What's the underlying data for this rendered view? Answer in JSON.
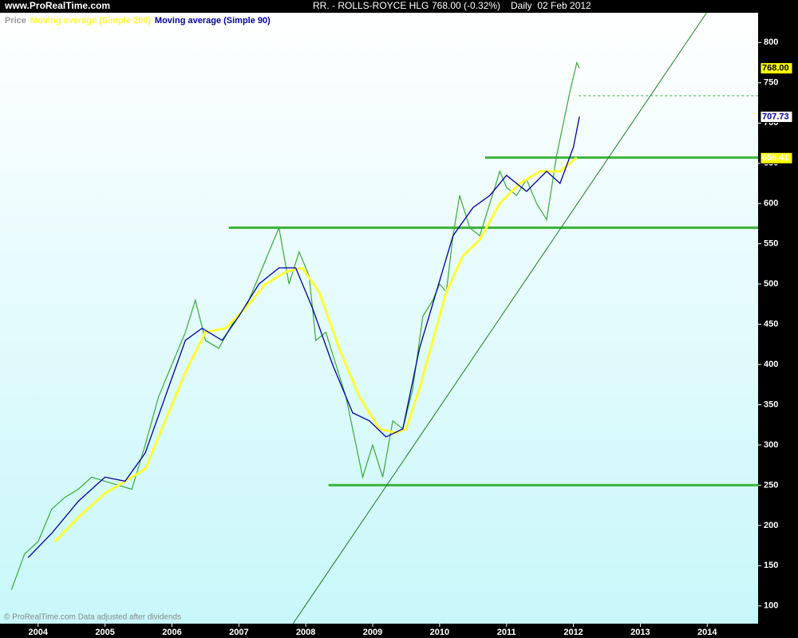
{
  "chart_data": {
    "type": "line",
    "site": "www.ProRealTime.com",
    "title": "RR. - ROLLS-ROYCE HLG",
    "last": "768.00 (-0.32%)",
    "period": "Daily  02 Feb 2012",
    "footer": "© ProRealTime.com  Data adjusted after dividends",
    "xlim": [
      2003.43,
      2014.76
    ],
    "xticks": [
      2004,
      2005,
      2006,
      2007,
      2008,
      2009,
      2010,
      2011,
      2012,
      2013,
      2014
    ],
    "ylim": [
      78,
      837
    ],
    "yticks": [
      100,
      150,
      200,
      250,
      300,
      350,
      400,
      450,
      500,
      550,
      600,
      650,
      700,
      750,
      800
    ],
    "series": [
      {
        "name": "Price",
        "color": "#3aa83a",
        "legend_color": "#999999",
        "x": [
          2003.6,
          2003.8,
          2004.0,
          2004.2,
          2004.4,
          2004.6,
          2004.8,
          2005.0,
          2005.2,
          2005.4,
          2005.6,
          2005.8,
          2006.0,
          2006.2,
          2006.35,
          2006.5,
          2006.7,
          2006.9,
          2007.1,
          2007.3,
          2007.5,
          2007.6,
          2007.75,
          2007.9,
          2008.05,
          2008.15,
          2008.3,
          2008.45,
          2008.6,
          2008.75,
          2008.85,
          2009.0,
          2009.15,
          2009.3,
          2009.45,
          2009.6,
          2009.75,
          2009.9,
          2010.0,
          2010.1,
          2010.2,
          2010.3,
          2010.45,
          2010.6,
          2010.75,
          2010.9,
          2011.0,
          2011.15,
          2011.3,
          2011.45,
          2011.6,
          2011.75,
          2011.85,
          2011.95,
          2012.05,
          2012.09
        ],
        "values": [
          120,
          165,
          180,
          220,
          235,
          245,
          260,
          255,
          250,
          245,
          300,
          360,
          400,
          440,
          480,
          430,
          420,
          450,
          470,
          510,
          550,
          570,
          500,
          540,
          510,
          430,
          440,
          400,
          360,
          300,
          260,
          300,
          260,
          330,
          320,
          370,
          460,
          480,
          500,
          490,
          560,
          610,
          570,
          560,
          600,
          640,
          620,
          610,
          630,
          600,
          580,
          660,
          700,
          740,
          775,
          768
        ]
      },
      {
        "name": "Moving average (Simple 200)",
        "color": "#ffff33",
        "legend_color": "#ffff33",
        "x": [
          2004.25,
          2004.6,
          2005.0,
          2005.3,
          2005.6,
          2005.9,
          2006.2,
          2006.5,
          2006.8,
          2007.1,
          2007.4,
          2007.7,
          2007.95,
          2008.2,
          2008.5,
          2008.8,
          2009.1,
          2009.35,
          2009.5,
          2009.7,
          2009.9,
          2010.1,
          2010.35,
          2010.6,
          2010.9,
          2011.2,
          2011.5,
          2011.8,
          2012.05
        ],
        "values": [
          180,
          210,
          240,
          255,
          270,
          330,
          390,
          440,
          445,
          470,
          500,
          515,
          520,
          490,
          420,
          360,
          320,
          315,
          320,
          370,
          430,
          490,
          535,
          555,
          600,
          625,
          640,
          640,
          657
        ]
      },
      {
        "name": "Moving average (Simple 90)",
        "color": "#0000a0",
        "legend_color": "#0000a0",
        "x": [
          2003.85,
          2004.2,
          2004.6,
          2005.0,
          2005.3,
          2005.6,
          2005.9,
          2006.2,
          2006.45,
          2006.75,
          2007.0,
          2007.3,
          2007.6,
          2007.85,
          2008.1,
          2008.4,
          2008.7,
          2008.95,
          2009.2,
          2009.45,
          2009.7,
          2009.95,
          2010.2,
          2010.5,
          2010.75,
          2011.0,
          2011.3,
          2011.6,
          2011.8,
          2012.0,
          2012.09
        ],
        "values": [
          160,
          190,
          230,
          260,
          255,
          290,
          360,
          430,
          445,
          430,
          460,
          500,
          520,
          520,
          470,
          400,
          340,
          330,
          310,
          320,
          420,
          490,
          560,
          595,
          610,
          635,
          615,
          640,
          625,
          670,
          708
        ]
      }
    ],
    "levels": [
      {
        "value": 250,
        "from": 2008.34,
        "color": "#3cb43c"
      },
      {
        "value": 570,
        "from": 2006.85,
        "color": "#3cb43c"
      },
      {
        "value": 657,
        "from": 2010.68,
        "color": "#3cb43c"
      }
    ],
    "dashed_level": {
      "value": 734,
      "from": 2012.08,
      "color": "#3aa83a"
    },
    "trendline": {
      "x": [
        2007.81,
        2013.99
      ],
      "y": [
        78,
        837
      ],
      "color": "#1e7a1e"
    },
    "price_labels": [
      {
        "value": 768,
        "label": "768.00",
        "bg": "#ffff00",
        "color": "#000000"
      },
      {
        "value": 707.73,
        "label": "707.73",
        "bg": "#ffffff",
        "color": "#0000a0"
      },
      {
        "value": 656.41,
        "label": "656.41",
        "bg": "#ffff00",
        "color": "#ffffff"
      }
    ]
  }
}
